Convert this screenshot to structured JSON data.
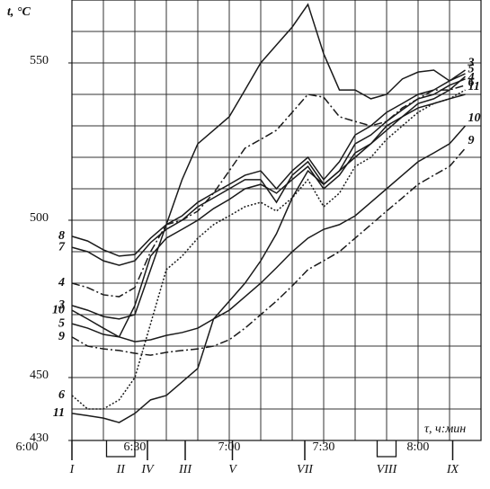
{
  "chart_data": {
    "type": "line",
    "y_label": "t, °C",
    "x_label": "τ, ч:мин",
    "x_start_label": "6:00",
    "xlim": [
      10,
      140
    ],
    "ylim": [
      430,
      570
    ],
    "xticks": [
      {
        "value": 30,
        "label": "6:30"
      },
      {
        "value": 60,
        "label": "7:00"
      },
      {
        "value": 90,
        "label": "7:30"
      },
      {
        "value": 120,
        "label": "8:00"
      }
    ],
    "yticks": [
      430,
      450,
      500,
      550
    ],
    "xgrid": [
      10,
      20,
      30,
      40,
      50,
      60,
      70,
      80,
      90,
      100,
      110,
      120,
      130,
      140
    ],
    "ygrid": [
      430,
      440,
      450,
      460,
      470,
      480,
      490,
      500,
      510,
      520,
      530,
      540,
      550,
      560,
      570
    ],
    "events": [
      {
        "label": "I",
        "x": [
          10
        ]
      },
      {
        "label": "II",
        "x": [
          21,
          30
        ]
      },
      {
        "label": "IV",
        "x": [
          34
        ]
      },
      {
        "label": "III",
        "x": [
          46
        ]
      },
      {
        "label": "V",
        "x": [
          61
        ]
      },
      {
        "label": "VII",
        "x": [
          84
        ]
      },
      {
        "label": "VIII",
        "x": [
          107,
          113
        ]
      },
      {
        "label": "IX",
        "x": [
          131
        ]
      }
    ],
    "x": [
      10,
      15,
      20,
      25,
      30,
      35,
      40,
      45,
      50,
      55,
      60,
      65,
      70,
      75,
      80,
      85,
      90,
      95,
      100,
      105,
      110,
      115,
      120,
      125,
      130,
      135
    ],
    "series": [
      {
        "name": "8",
        "color": "#1a1a1a",
        "dash": "solid",
        "end_label": false,
        "values": [
          494.9,
          493.4,
          490.6,
          488.6,
          489.1,
          494.3,
          498.6,
          501.4,
          505.7,
          508.6,
          511.4,
          514.3,
          515.7,
          510,
          515.7,
          520,
          512.9,
          518.6,
          527.1,
          530,
          534.3,
          537.1,
          540,
          541.4,
          544.3,
          546.6
        ]
      },
      {
        "name": "7",
        "color": "#1a1a1a",
        "dash": "solid",
        "end_label": false,
        "values": [
          491.4,
          490,
          487.1,
          485.7,
          487.1,
          492.9,
          497.1,
          500,
          504.3,
          507.1,
          510,
          512.9,
          512.9,
          505.7,
          514.3,
          518.6,
          511.4,
          515.7,
          524.3,
          527.1,
          531.4,
          535.1,
          538.6,
          540,
          542.9,
          544.9
        ]
      },
      {
        "name": "4",
        "color": "#1a1a1a",
        "dash": "dashdot",
        "end_label": true,
        "values": [
          480,
          478.6,
          476.3,
          475.7,
          478.6,
          490,
          498.6,
          500,
          502.9,
          508.6,
          515.7,
          522.9,
          525.7,
          528.6,
          534.3,
          540,
          539.1,
          532.9,
          531.4,
          530,
          531.4,
          535.7,
          538.6,
          541.4,
          541.4,
          542.9
        ]
      },
      {
        "name": "3",
        "color": "#1a1a1a",
        "dash": "solid",
        "end_label": true,
        "values": [
          472.9,
          471.4,
          469.4,
          468.6,
          470,
          484.3,
          498.6,
          512.9,
          524.3,
          528.6,
          532.9,
          541.4,
          550,
          555.7,
          561.4,
          568.6,
          552.9,
          541.4,
          541.4,
          538.6,
          540,
          544.9,
          547.1,
          547.7,
          544.3,
          547.7
        ]
      },
      {
        "name": "10",
        "color": "#1a1a1a",
        "dash": "solid",
        "end_label": true,
        "values": [
          471.4,
          468.6,
          465.7,
          462.9,
          461.4,
          462,
          463.4,
          464.3,
          465.7,
          468.6,
          471.4,
          475.7,
          480,
          484.9,
          490,
          494.3,
          497.1,
          498.6,
          501.4,
          505.7,
          510,
          514.3,
          518.6,
          521.4,
          524.3,
          530
        ]
      },
      {
        "name": "5",
        "color": "#1a1a1a",
        "dash": "solid",
        "end_label": true,
        "values": [
          467.1,
          465.7,
          463.7,
          462.9,
          472.9,
          488.6,
          494.3,
          497.1,
          500,
          503.7,
          506.6,
          510,
          511.4,
          508.6,
          512.9,
          517.1,
          510,
          514.3,
          521.4,
          524.3,
          530,
          532.9,
          537.1,
          538.6,
          541.4,
          545.7
        ]
      },
      {
        "name": "9",
        "color": "#1a1a1a",
        "dash": "dashdot",
        "end_label": true,
        "values": [
          462.9,
          460,
          459.1,
          458.6,
          457.7,
          457.1,
          458,
          458.6,
          459.1,
          460,
          462,
          465.7,
          470,
          474.3,
          479.1,
          484.3,
          487.1,
          490,
          494.3,
          498.6,
          502.9,
          507.1,
          511.4,
          514.3,
          517.1,
          522.9
        ]
      },
      {
        "name": "6",
        "color": "#1a1a1a",
        "dash": "dot",
        "end_label": true,
        "values": [
          444.3,
          440,
          440,
          442.9,
          450,
          467.1,
          484.3,
          488.6,
          494.3,
          498.6,
          501.4,
          504.3,
          505.7,
          502.9,
          507.1,
          512.9,
          504.3,
          508.6,
          517.1,
          520,
          525.7,
          530,
          534.3,
          537.1,
          538.6,
          541.4
        ]
      },
      {
        "name": "11",
        "color": "#1a1a1a",
        "dash": "solid",
        "end_label": true,
        "values": [
          438.6,
          437.9,
          437.1,
          435.7,
          438.6,
          442.9,
          444.3,
          448.6,
          452.9,
          468.6,
          474.3,
          480,
          487.1,
          495.7,
          507.1,
          515.7,
          511.4,
          515.7,
          520,
          524.3,
          528.6,
          532.9,
          535.7,
          537.1,
          538.6,
          540
        ]
      }
    ]
  }
}
